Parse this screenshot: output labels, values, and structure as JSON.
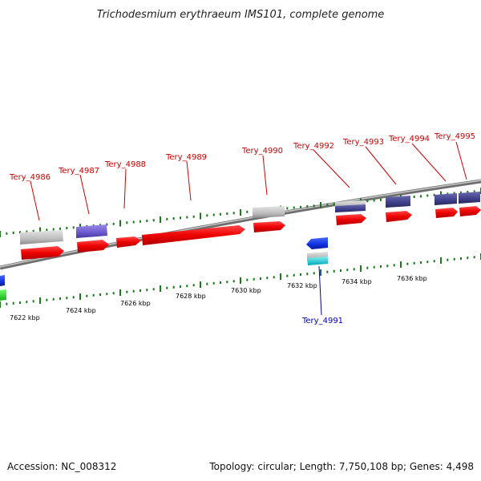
{
  "title": "Trichodesmium erythraeum IMS101, complete genome",
  "footer": {
    "accession": "Accession: NC_008312",
    "summary": "Topology: circular; Length: 7,750,108 bp; Genes: 4,498"
  },
  "colors": {
    "label_red": "#cc0000",
    "label_blue": "#0000aa",
    "tick_green": "#1a7a1a",
    "backbone": "#8a8a8a"
  },
  "scale_labels": [
    "7622 kbp",
    "7624 kbp",
    "7626 kbp",
    "7628 kbp",
    "7630 kbp",
    "7632 kbp",
    "7634 kbp",
    "7636 kbp"
  ],
  "top_genes": [
    "Tery_4986",
    "Tery_4987",
    "Tery_4988",
    "Tery_4989",
    "Tery_4990",
    "Tery_4992",
    "Tery_4993",
    "Tery_4994",
    "Tery_4995"
  ],
  "bottom_genes": [
    "Tery_4991"
  ]
}
